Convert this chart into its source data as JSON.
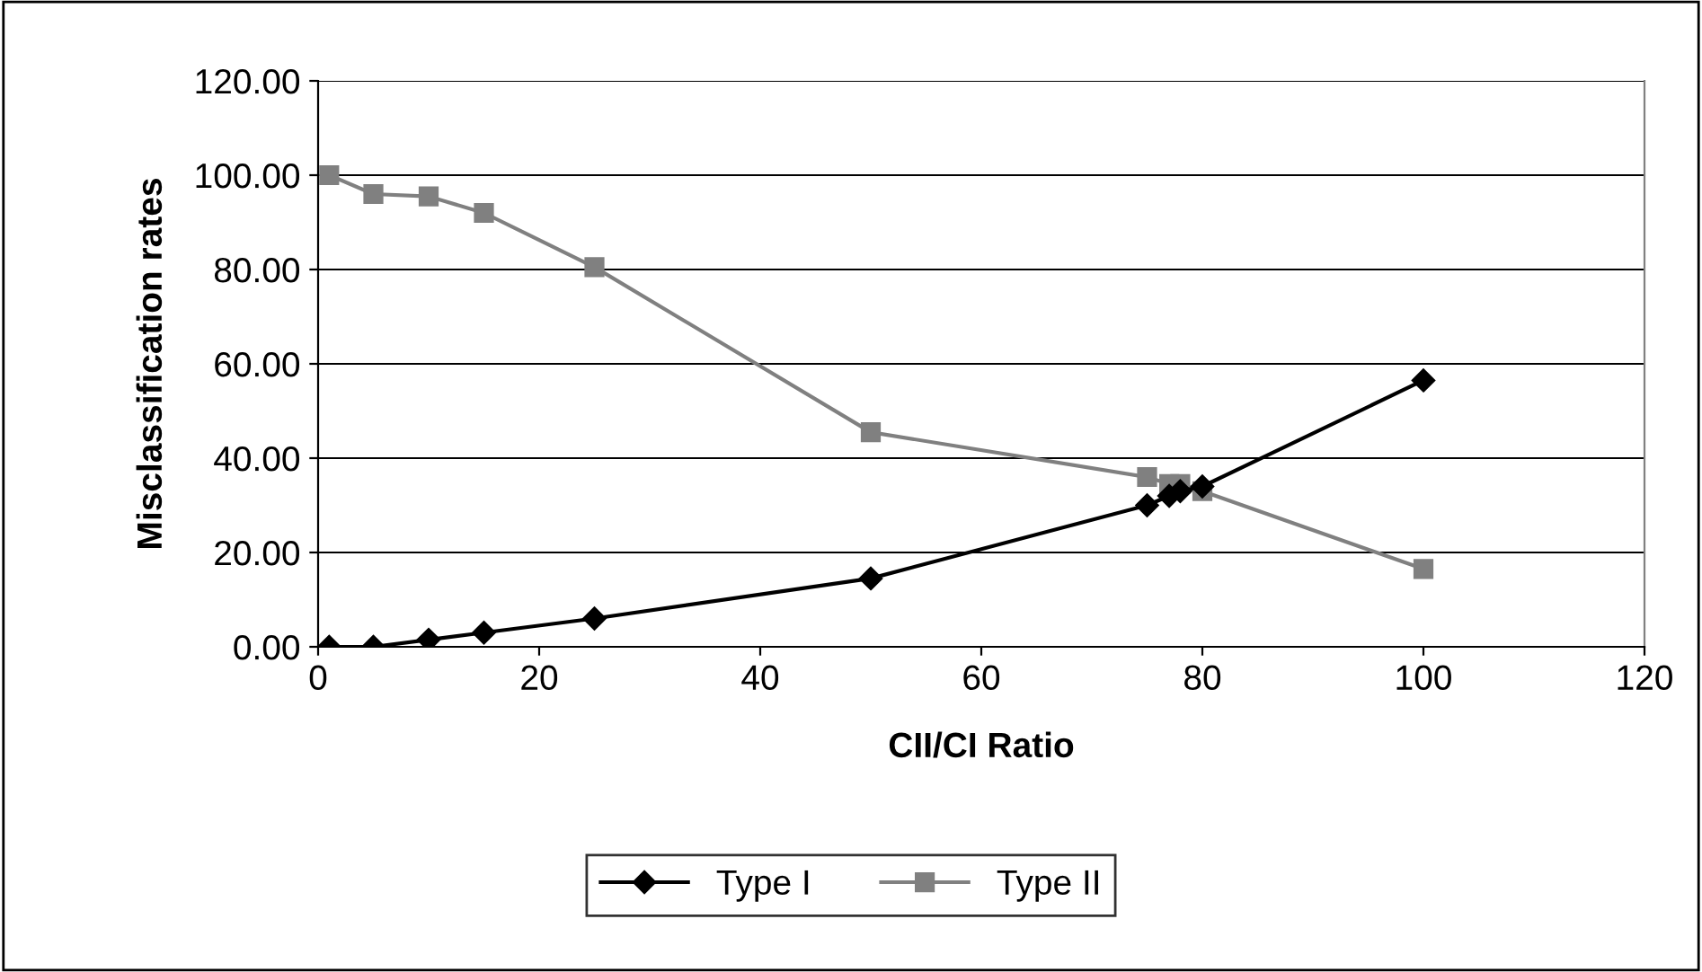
{
  "chart_data": {
    "type": "line",
    "xlabel": "CII/CI Ratio",
    "ylabel": "Misclassification rates",
    "x": [
      1,
      5,
      10,
      15,
      25,
      50,
      75,
      77,
      78,
      80,
      100
    ],
    "series": [
      {
        "name": "Type I",
        "color": "#000000",
        "marker": "diamond",
        "values": [
          0,
          0,
          1.5,
          3,
          6,
          14.5,
          30,
          32,
          33,
          34,
          56.5
        ]
      },
      {
        "name": "Type II",
        "color": "#808080",
        "marker": "square",
        "values": [
          100,
          96,
          95.5,
          92,
          80.5,
          45.5,
          36,
          34.5,
          34.5,
          33,
          16.5
        ]
      }
    ],
    "xlim": [
      0,
      120
    ],
    "xticks": [
      0,
      20,
      40,
      60,
      80,
      100,
      120
    ],
    "ylim": [
      0,
      120
    ],
    "yticks": [
      {
        "value": 0,
        "label": "0.00"
      },
      {
        "value": 20,
        "label": "20.00"
      },
      {
        "value": 40,
        "label": "40.00"
      },
      {
        "value": 60,
        "label": "60.00"
      },
      {
        "value": 80,
        "label": "80.00"
      },
      {
        "value": 100,
        "label": "100.00"
      },
      {
        "value": 120,
        "label": "120.00"
      }
    ],
    "grid": "y",
    "legend": "bottom",
    "line_style": "solid"
  }
}
